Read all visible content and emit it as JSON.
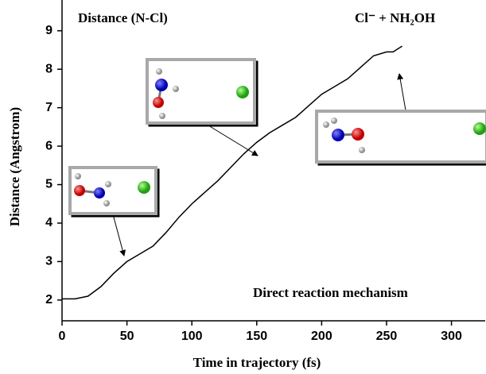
{
  "chart_data": {
    "type": "line",
    "x_label": "Time in trajectory (fs)",
    "y_label": "Distance (Angstrom)",
    "annotations": [
      "Distance (N-Cl)",
      "Cl⁻ + NH₂OH",
      "Direct reaction mechanism"
    ],
    "x": [
      0,
      10,
      20,
      30,
      40,
      50,
      60,
      70,
      80,
      90,
      100,
      110,
      120,
      130,
      140,
      150,
      160,
      170,
      180,
      190,
      200,
      210,
      220,
      230,
      240,
      250,
      255,
      262
    ],
    "series": [
      {
        "color": "#000000",
        "values": [
          2.03,
          2.03,
          2.1,
          2.35,
          2.7,
          3.0,
          3.2,
          3.4,
          3.75,
          4.15,
          4.5,
          4.8,
          5.1,
          5.45,
          5.8,
          6.1,
          6.35,
          6.55,
          6.75,
          7.05,
          7.35,
          7.55,
          7.75,
          8.05,
          8.35,
          8.45,
          8.45,
          8.6
        ]
      }
    ],
    "xlim": [
      0,
      326
    ],
    "ylim": [
      1.46,
      9.8
    ],
    "xticks": [
      0,
      50,
      100,
      150,
      200,
      250,
      300
    ],
    "yticks": [
      2,
      3,
      4,
      5,
      6,
      7,
      8,
      9
    ]
  }
}
